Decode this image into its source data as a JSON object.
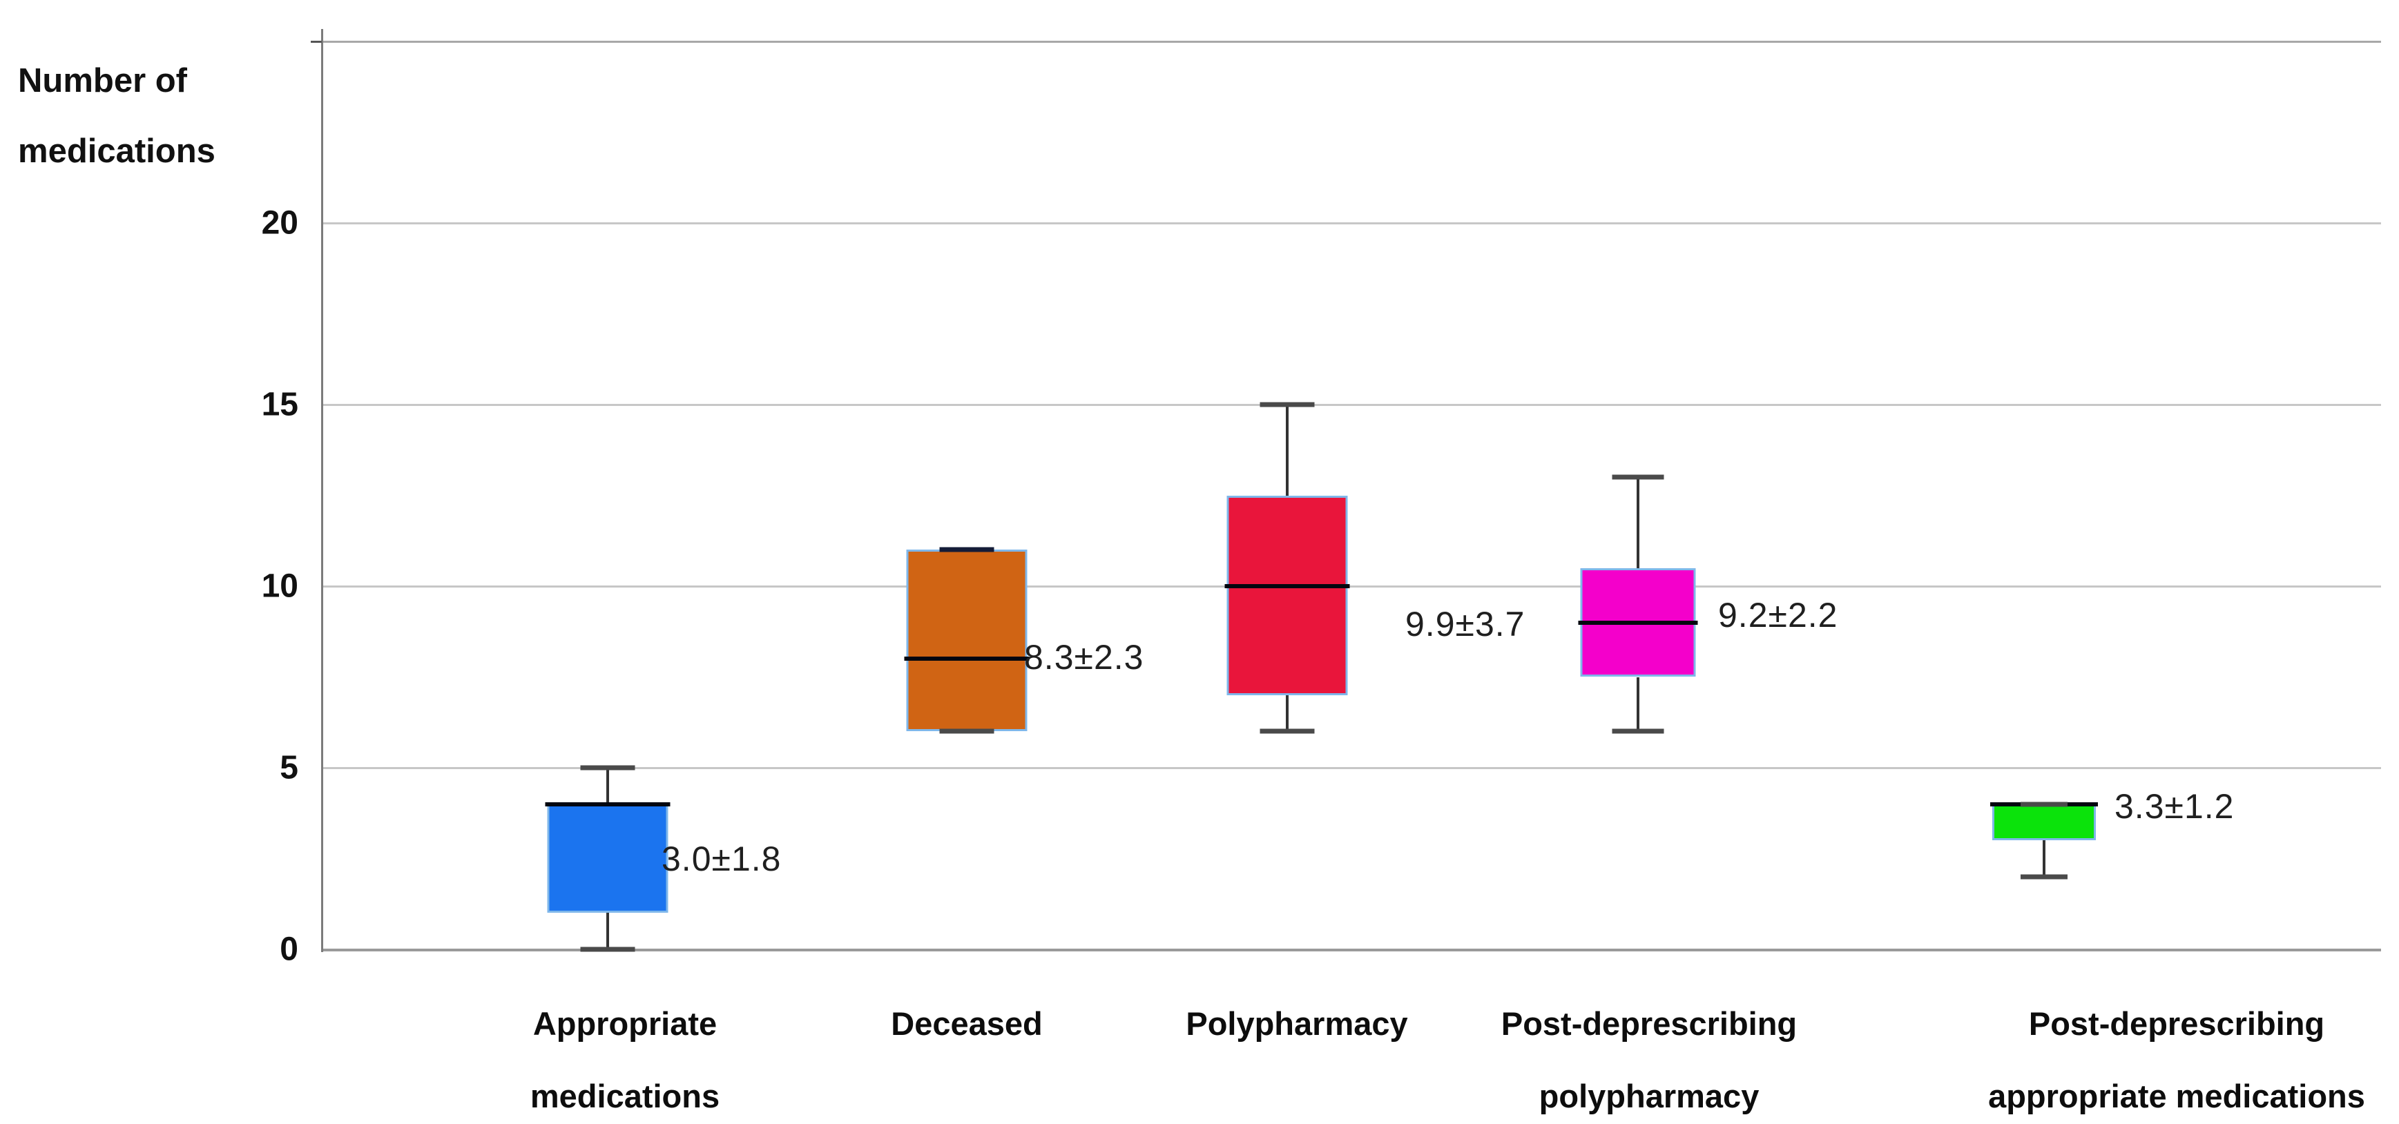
{
  "page": {
    "background": "#ffffff"
  },
  "y_axis": {
    "title_line1": "Number of",
    "title_line2": "medications"
  },
  "chart_data": {
    "type": "box",
    "title": "",
    "xlabel": "",
    "ylabel": "Number of medications",
    "ylim": [
      0,
      25
    ],
    "yticks": [
      0,
      5,
      10,
      15,
      20
    ],
    "grid": "horizontal gridlines every 5 units, light gray; top boundary line at 25 unlabeled",
    "legend": "none",
    "categories": [
      "Appropriate medications",
      "Deceased",
      "Polypharmacy",
      "Post-deprescribing polypharmacy",
      "Post-deprescribing appropriate medications"
    ],
    "series": [
      {
        "name": "Appropriate medications",
        "label_lines": [
          "Appropriate",
          "medications"
        ],
        "color": "#1B74EF",
        "whisker_low": 0,
        "q1": 1,
        "median": 4,
        "q3": 4,
        "whisker_high": 5,
        "mean_sd_annotation": "3.0±1.8"
      },
      {
        "name": "Deceased",
        "label_lines": [
          "Deceased"
        ],
        "color": "#D06414",
        "whisker_low": 6,
        "q1": 6,
        "median": 8,
        "q3": 11,
        "whisker_high": 11,
        "mean_sd_annotation": "8.3±2.3"
      },
      {
        "name": "Polypharmacy",
        "label_lines": [
          "Polypharmacy"
        ],
        "color": "#E9153B",
        "whisker_low": 6,
        "q1": 7,
        "median": 10,
        "q3": 12.5,
        "whisker_high": 15,
        "mean_sd_annotation": "9.9±3.7"
      },
      {
        "name": "Post-deprescribing polypharmacy",
        "label_lines": [
          "Post-deprescribing",
          "polypharmacy"
        ],
        "color": "#F400CB",
        "whisker_low": 6,
        "q1": 7.5,
        "median": 9,
        "q3": 10.5,
        "whisker_high": 13,
        "mean_sd_annotation": "9.2±2.2"
      },
      {
        "name": "Post-deprescribing appropriate medications",
        "label_lines": [
          "Post-deprescribing",
          "appropriate medications"
        ],
        "color": "#0BE30B",
        "whisker_low": 2,
        "q1": 3,
        "median": 4,
        "q3": 4,
        "whisker_high": 4,
        "mean_sd_annotation": "3.3±1.2"
      }
    ],
    "colors": {
      "gridline": "#c7c7c7",
      "axis_line": "#7b7b7b",
      "box_border_light_blue": "#7fb7ea",
      "median_line": "#02060f",
      "whisker": "#333333",
      "cap_default": "#4a4a4a",
      "cap_deceased_top_navy": "#141c38",
      "annotation_text": "#1f1f1f"
    }
  }
}
